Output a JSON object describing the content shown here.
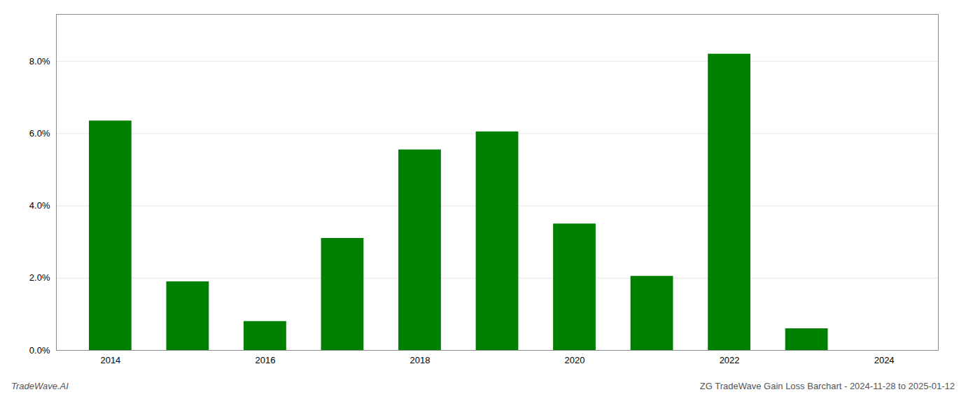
{
  "chart_data": {
    "type": "bar",
    "x": [
      2014,
      2015,
      2016,
      2017,
      2018,
      2019,
      2020,
      2021,
      2022,
      2023,
      2024
    ],
    "values": [
      0.0635,
      0.019,
      0.008,
      0.031,
      0.0555,
      0.0605,
      0.035,
      0.0205,
      0.082,
      0.006,
      0.0
    ],
    "color": "#008000",
    "xlim": [
      2013.3,
      2024.7
    ],
    "xticks": [
      2014,
      2016,
      2018,
      2020,
      2022,
      2024
    ],
    "ylim": [
      0,
      0.093
    ],
    "yticks": [
      {
        "value": 0.0,
        "label": "0.0%"
      },
      {
        "value": 0.02,
        "label": "2.0%"
      },
      {
        "value": 0.04,
        "label": "4.0%"
      },
      {
        "value": 0.06,
        "label": "6.0%"
      },
      {
        "value": 0.08,
        "label": "8.0%"
      }
    ],
    "grid": true,
    "annotations": [
      "TradeWave.AI",
      "ZG TradeWave Gain Loss Barchart - 2024-11-28 to 2025-01-12"
    ]
  }
}
